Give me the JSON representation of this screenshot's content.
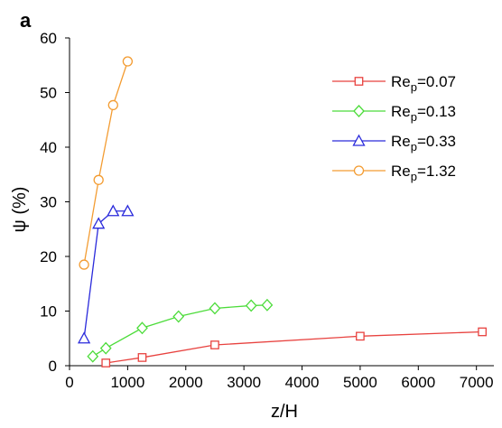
{
  "chart_data": {
    "type": "line",
    "panel_label": "a",
    "title": "",
    "xlabel": "z/H",
    "ylabel": "ψ (%)",
    "xlim": [
      0,
      7300
    ],
    "ylim": [
      0,
      60
    ],
    "xticks": [
      0,
      1000,
      2000,
      3000,
      4000,
      5000,
      6000,
      7000
    ],
    "yticks": [
      0,
      10,
      20,
      30,
      40,
      50,
      60
    ],
    "grid": false,
    "legend_position": "top-right",
    "series": [
      {
        "name": "Re_p=0.07",
        "legend_base": "Re",
        "legend_sub": "p",
        "legend_value": "=0.07",
        "color": "#e8423f",
        "marker": "square",
        "x": [
          625,
          1250,
          2500,
          5000,
          7100
        ],
        "y": [
          0.5,
          1.5,
          3.8,
          5.4,
          6.2
        ]
      },
      {
        "name": "Re_p=0.13",
        "legend_base": "Re",
        "legend_sub": "p",
        "legend_value": "=0.13",
        "color": "#4cdc3a",
        "marker": "diamond",
        "x": [
          400,
          625,
          1250,
          1875,
          2500,
          3125,
          3400
        ],
        "y": [
          1.7,
          3.2,
          6.9,
          9.0,
          10.5,
          11.0,
          11.1
        ]
      },
      {
        "name": "Re_p=0.33",
        "legend_base": "Re",
        "legend_sub": "p",
        "legend_value": "=0.33",
        "color": "#2a2adb",
        "marker": "triangle",
        "x": [
          250,
          500,
          750,
          1000
        ],
        "y": [
          5.0,
          26.0,
          28.3,
          28.3
        ]
      },
      {
        "name": "Re_p=1.32",
        "legend_base": "Re",
        "legend_sub": "p",
        "legend_value": "=1.32",
        "color": "#f39c32",
        "marker": "circle",
        "x": [
          250,
          500,
          750,
          1000
        ],
        "y": [
          18.5,
          34.0,
          47.7,
          55.7
        ]
      }
    ]
  }
}
